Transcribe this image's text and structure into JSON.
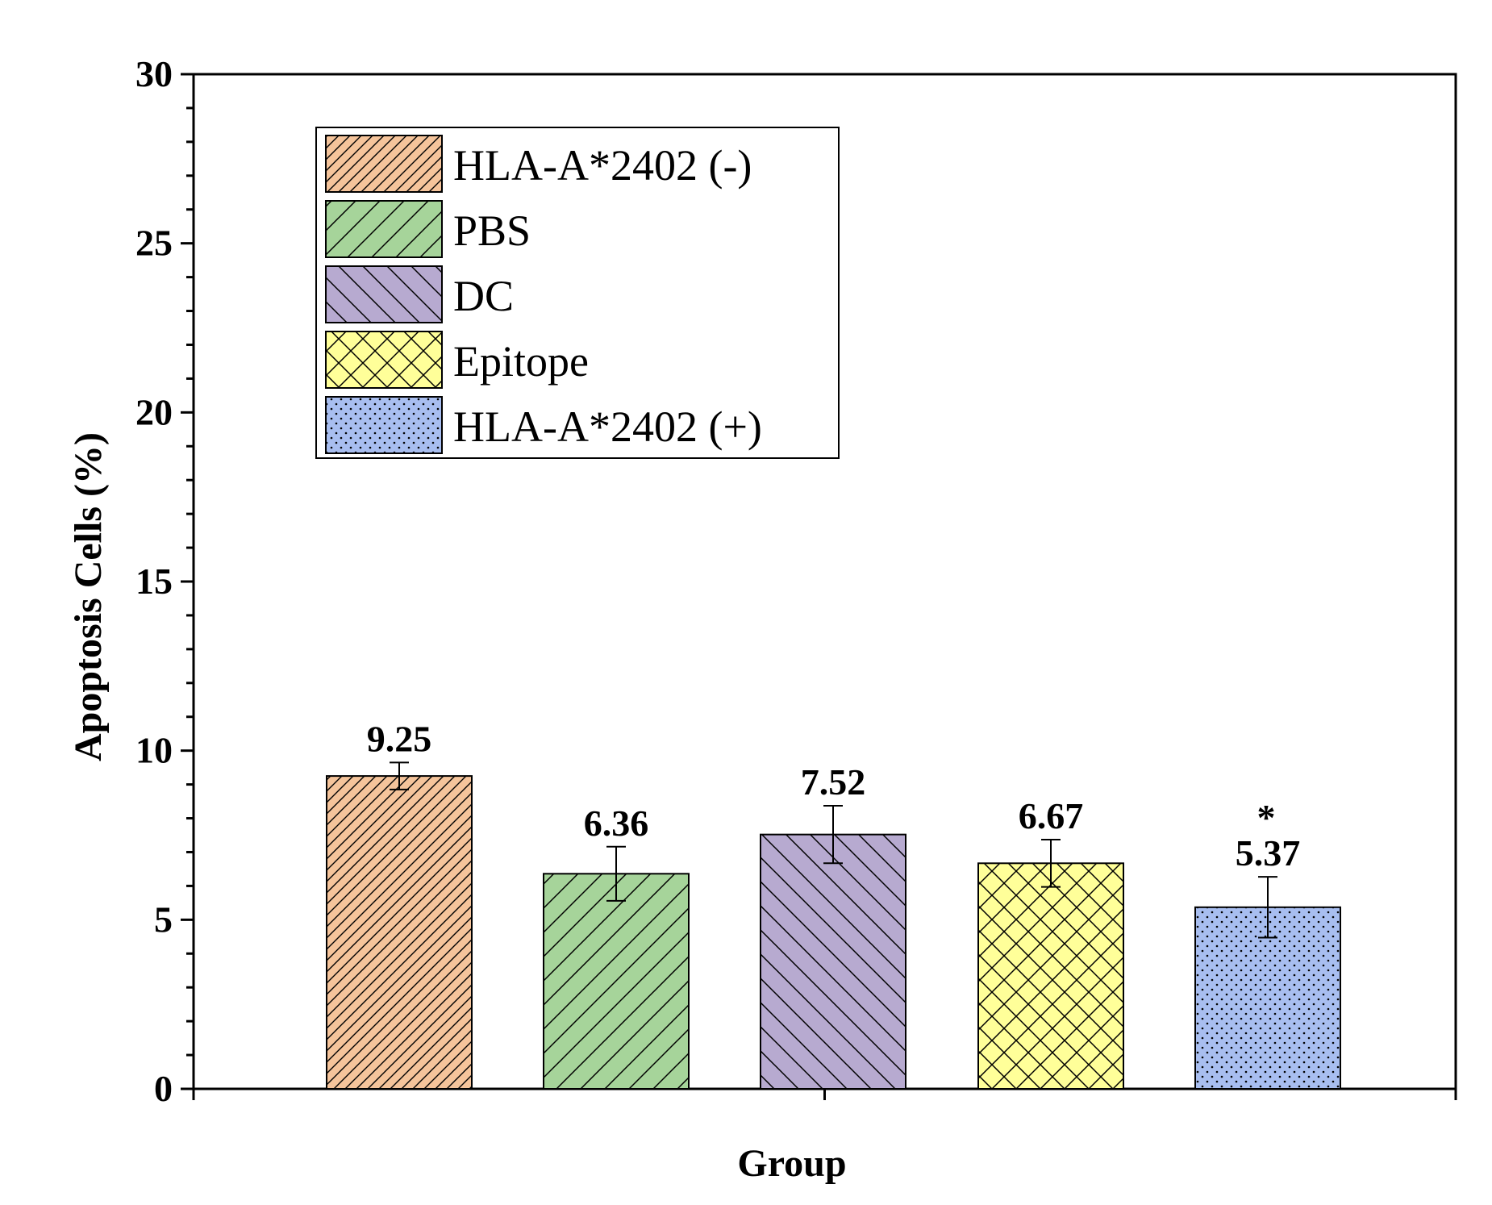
{
  "chart_data": {
    "type": "bar",
    "categories": [
      "HLA-A*2402 (-)",
      "PBS",
      "DC",
      "Epitope",
      "HLA-A*2402 (+)"
    ],
    "values": [
      9.25,
      6.36,
      7.52,
      6.67,
      5.37
    ],
    "errors": [
      0.4,
      0.8,
      0.85,
      0.7,
      0.9
    ],
    "value_labels": [
      "9.25",
      "6.36",
      "7.52",
      "6.67",
      "5.37"
    ],
    "significance": [
      "",
      "",
      "",
      "",
      "*"
    ],
    "colors": [
      "#f5c49b",
      "#a6d49a",
      "#b7aad0",
      "#ffff99",
      "#a8bef0"
    ],
    "patterns": [
      "diag-fine",
      "diag-right",
      "diag-left",
      "crosshatch",
      "dots"
    ],
    "xlabel": "Group",
    "ylabel": "Apoptosis Cells (%)",
    "ylim": [
      0,
      30
    ],
    "yticks": [
      0,
      5,
      10,
      15,
      20,
      25,
      30
    ],
    "legend": {
      "placement": "top-left",
      "entries": [
        "HLA-A*2402 (-)",
        "PBS",
        "DC",
        "Epitope",
        "HLA-A*2402 (+)"
      ]
    },
    "grid": false
  }
}
